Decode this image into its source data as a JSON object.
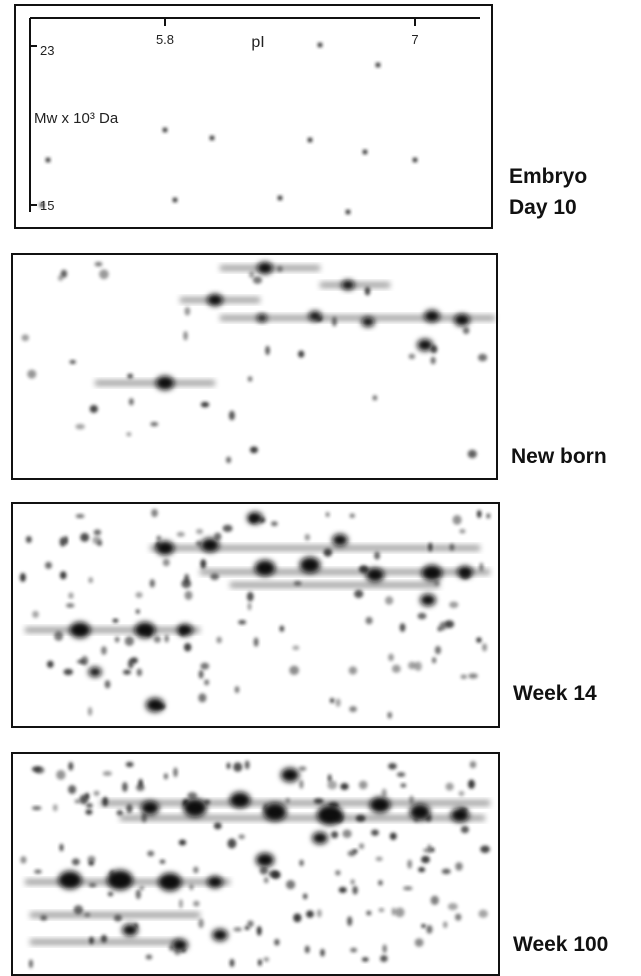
{
  "axes": {
    "x_title": "pI",
    "x_ticks": [
      "5.8",
      "7"
    ],
    "y_title": "Mw x 10³ Da",
    "y_ticks": [
      "23",
      "15"
    ]
  },
  "panels": [
    {
      "label": [
        "Embryo",
        "Day 10"
      ]
    },
    {
      "label": [
        "New born"
      ]
    },
    {
      "label": [
        "Week 14"
      ]
    },
    {
      "label": [
        "Week 100"
      ]
    }
  ]
}
